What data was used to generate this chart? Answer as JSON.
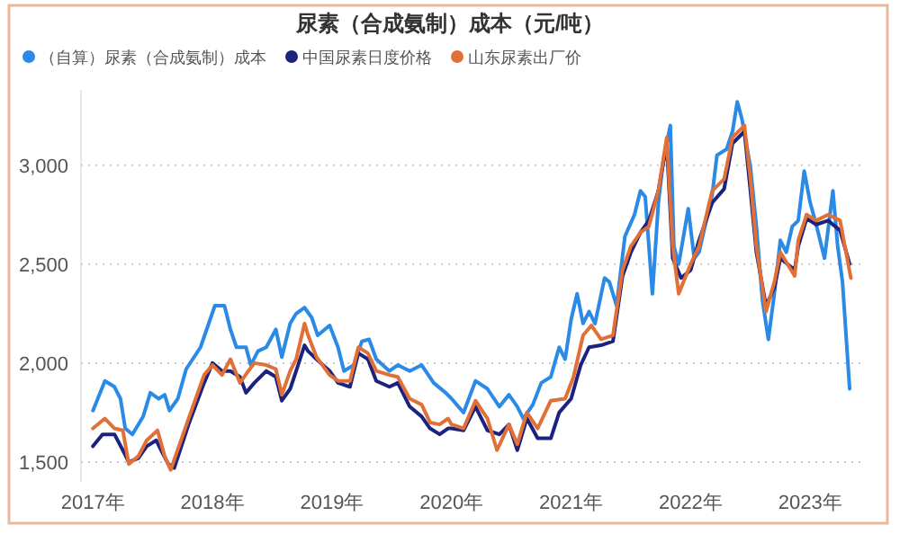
{
  "chart_data": {
    "type": "line",
    "title": "尿素（合成氨制）成本（元/吨）",
    "legend": "top left",
    "grid": "y",
    "xlim": [
      2016.9,
      2023.45
    ],
    "ylim": [
      1400,
      3380
    ],
    "xticks": [
      {
        "value": 2017,
        "label": "2017年"
      },
      {
        "value": 2018,
        "label": "2018年"
      },
      {
        "value": 2019,
        "label": "2019年"
      },
      {
        "value": 2020,
        "label": "2020年"
      },
      {
        "value": 2021,
        "label": "2021年"
      },
      {
        "value": 2022,
        "label": "2022年"
      },
      {
        "value": 2023,
        "label": "2023年"
      }
    ],
    "yticks": [
      {
        "value": 1500,
        "label": "1,500"
      },
      {
        "value": 2000,
        "label": "2,000"
      },
      {
        "value": 2500,
        "label": "2,500"
      },
      {
        "value": 3000,
        "label": "3,000"
      }
    ],
    "series": [
      {
        "name": "（自算）尿素（合成氨制）成本",
        "color": "#2a8ae6",
        "x": [
          2017.0,
          2017.1,
          2017.18,
          2017.23,
          2017.27,
          2017.33,
          2017.42,
          2017.48,
          2017.55,
          2017.6,
          2017.64,
          2017.71,
          2017.78,
          2017.9,
          2018.02,
          2018.1,
          2018.15,
          2018.2,
          2018.28,
          2018.32,
          2018.38,
          2018.45,
          2018.53,
          2018.58,
          2018.65,
          2018.7,
          2018.77,
          2018.83,
          2018.88,
          2018.98,
          2019.05,
          2019.1,
          2019.18,
          2019.25,
          2019.31,
          2019.37,
          2019.48,
          2019.55,
          2019.65,
          2019.75,
          2019.85,
          2019.95,
          2020.0,
          2020.1,
          2020.2,
          2020.3,
          2020.4,
          2020.48,
          2020.55,
          2020.6,
          2020.68,
          2020.75,
          2020.83,
          2020.9,
          2020.95,
          2021.0,
          2021.05,
          2021.1,
          2021.15,
          2021.2,
          2021.28,
          2021.32,
          2021.38,
          2021.45,
          2021.53,
          2021.58,
          2021.62,
          2021.68,
          2021.73,
          2021.77,
          2021.83,
          2021.86,
          2021.9,
          2021.98,
          2022.03,
          2022.07,
          2022.18,
          2022.22,
          2022.3,
          2022.35,
          2022.39,
          2022.43,
          2022.5,
          2022.55,
          2022.6,
          2022.65,
          2022.7,
          2022.75,
          2022.8,
          2022.85,
          2022.9,
          2022.95,
          2023.0,
          2023.05,
          2023.12,
          2023.19,
          2023.23,
          2023.27,
          2023.33
        ],
        "values": [
          1760,
          1910,
          1880,
          1820,
          1670,
          1640,
          1730,
          1850,
          1820,
          1840,
          1760,
          1820,
          1970,
          2080,
          2290,
          2290,
          2170,
          2080,
          2080,
          1990,
          2060,
          2080,
          2170,
          2030,
          2200,
          2250,
          2280,
          2230,
          2140,
          2190,
          2080,
          1960,
          1990,
          2110,
          2120,
          2020,
          1960,
          1990,
          1960,
          1990,
          1900,
          1850,
          1820,
          1750,
          1910,
          1870,
          1780,
          1840,
          1780,
          1720,
          1790,
          1900,
          1930,
          2080,
          2020,
          2220,
          2350,
          2200,
          2260,
          2200,
          2430,
          2410,
          2290,
          2640,
          2750,
          2870,
          2840,
          2350,
          2810,
          3020,
          3200,
          2590,
          2500,
          2780,
          2530,
          2560,
          2850,
          3050,
          3080,
          3170,
          3320,
          3230,
          2990,
          2690,
          2320,
          2120,
          2350,
          2620,
          2560,
          2690,
          2720,
          2970,
          2810,
          2700,
          2530,
          2870,
          2590,
          2410,
          1870
        ]
      },
      {
        "name": "中国尿素日度价格",
        "color": "#1c237f",
        "x": [
          2017.0,
          2017.08,
          2017.18,
          2017.25,
          2017.3,
          2017.38,
          2017.45,
          2017.53,
          2017.57,
          2017.63,
          2017.68,
          2017.8,
          2017.93,
          2018.0,
          2018.08,
          2018.15,
          2018.23,
          2018.28,
          2018.35,
          2018.45,
          2018.53,
          2018.58,
          2018.65,
          2018.7,
          2018.77,
          2018.8,
          2018.87,
          2018.98,
          2019.05,
          2019.15,
          2019.22,
          2019.3,
          2019.37,
          2019.48,
          2019.55,
          2019.65,
          2019.75,
          2019.82,
          2019.9,
          2019.97,
          2020.0,
          2020.1,
          2020.2,
          2020.3,
          2020.4,
          2020.48,
          2020.55,
          2020.63,
          2020.72,
          2020.83,
          2020.9,
          2021.0,
          2021.08,
          2021.15,
          2021.25,
          2021.35,
          2021.43,
          2021.5,
          2021.58,
          2021.65,
          2021.73,
          2021.8,
          2021.85,
          2021.92,
          2022.0,
          2022.07,
          2022.18,
          2022.28,
          2022.35,
          2022.45,
          2022.5,
          2022.55,
          2022.63,
          2022.7,
          2022.75,
          2022.87,
          2022.9,
          2022.97,
          2023.05,
          2023.15,
          2023.25,
          2023.33
        ],
        "values": [
          1580,
          1640,
          1640,
          1560,
          1500,
          1520,
          1580,
          1610,
          1560,
          1490,
          1470,
          1690,
          1900,
          2000,
          1960,
          1960,
          1930,
          1850,
          1900,
          1960,
          1930,
          1810,
          1870,
          1960,
          2090,
          2060,
          2020,
          1960,
          1900,
          1880,
          2050,
          2020,
          1910,
          1880,
          1900,
          1780,
          1730,
          1670,
          1640,
          1670,
          1670,
          1660,
          1780,
          1660,
          1640,
          1690,
          1560,
          1720,
          1620,
          1620,
          1750,
          1820,
          1990,
          2080,
          2090,
          2110,
          2440,
          2560,
          2660,
          2720,
          2870,
          3110,
          2530,
          2430,
          2470,
          2620,
          2810,
          2880,
          3110,
          3170,
          2870,
          2560,
          2290,
          2380,
          2530,
          2470,
          2590,
          2730,
          2700,
          2720,
          2670,
          2500
        ]
      },
      {
        "name": "山东尿素出厂价",
        "color": "#e07038",
        "x": [
          2017.0,
          2017.1,
          2017.18,
          2017.25,
          2017.3,
          2017.38,
          2017.45,
          2017.54,
          2017.6,
          2017.65,
          2017.8,
          2017.93,
          2018.0,
          2018.08,
          2018.15,
          2018.23,
          2018.3,
          2018.35,
          2018.45,
          2018.53,
          2018.58,
          2018.65,
          2018.7,
          2018.77,
          2018.8,
          2018.87,
          2018.98,
          2019.05,
          2019.15,
          2019.22,
          2019.3,
          2019.37,
          2019.48,
          2019.55,
          2019.65,
          2019.75,
          2019.82,
          2019.9,
          2019.97,
          2020.0,
          2020.1,
          2020.2,
          2020.3,
          2020.38,
          2020.48,
          2020.55,
          2020.63,
          2020.72,
          2020.83,
          2020.95,
          2021.02,
          2021.1,
          2021.17,
          2021.25,
          2021.35,
          2021.43,
          2021.5,
          2021.58,
          2021.65,
          2021.73,
          2021.8,
          2021.85,
          2021.9,
          2022.0,
          2022.07,
          2022.18,
          2022.28,
          2022.35,
          2022.45,
          2022.5,
          2022.55,
          2022.63,
          2022.7,
          2022.75,
          2022.87,
          2022.9,
          2022.97,
          2023.05,
          2023.15,
          2023.25,
          2023.34
        ],
        "values": [
          1670,
          1720,
          1670,
          1660,
          1490,
          1530,
          1610,
          1660,
          1530,
          1460,
          1720,
          1940,
          1990,
          1940,
          2020,
          1900,
          1960,
          2000,
          1990,
          1970,
          1840,
          1960,
          2020,
          2200,
          2140,
          2030,
          1940,
          1910,
          1910,
          2080,
          2050,
          1960,
          1940,
          1930,
          1820,
          1790,
          1700,
          1690,
          1720,
          1690,
          1670,
          1810,
          1720,
          1560,
          1690,
          1590,
          1750,
          1670,
          1810,
          1820,
          1930,
          2140,
          2190,
          2120,
          2140,
          2470,
          2590,
          2660,
          2690,
          2870,
          3140,
          2590,
          2350,
          2500,
          2590,
          2870,
          2930,
          3140,
          3200,
          2930,
          2590,
          2260,
          2410,
          2560,
          2440,
          2620,
          2750,
          2720,
          2750,
          2720,
          2430
        ]
      }
    ]
  }
}
